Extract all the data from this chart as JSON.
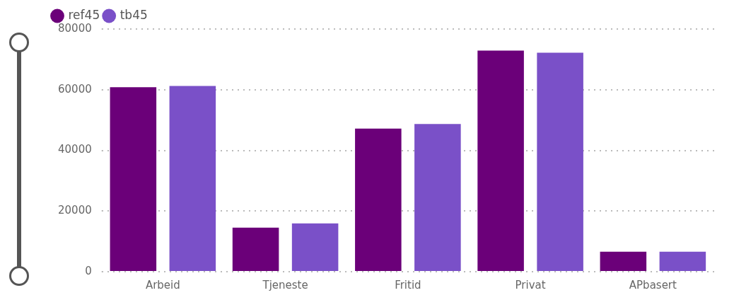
{
  "chart_data": {
    "type": "bar",
    "categories": [
      "Arbeid",
      "Tjeneste",
      "Fritid",
      "Privat",
      "APbasert"
    ],
    "series": [
      {
        "name": "ref45",
        "color": "#6b0079",
        "values": [
          60800,
          14500,
          47200,
          72900,
          6600
        ]
      },
      {
        "name": "tb45",
        "color": "#7a50c8",
        "values": [
          61200,
          15900,
          48700,
          72200,
          6600
        ]
      }
    ],
    "ylim": [
      0,
      80000
    ],
    "yticks": [
      0,
      20000,
      40000,
      60000,
      80000
    ],
    "grid": "y",
    "legend": "top left"
  }
}
